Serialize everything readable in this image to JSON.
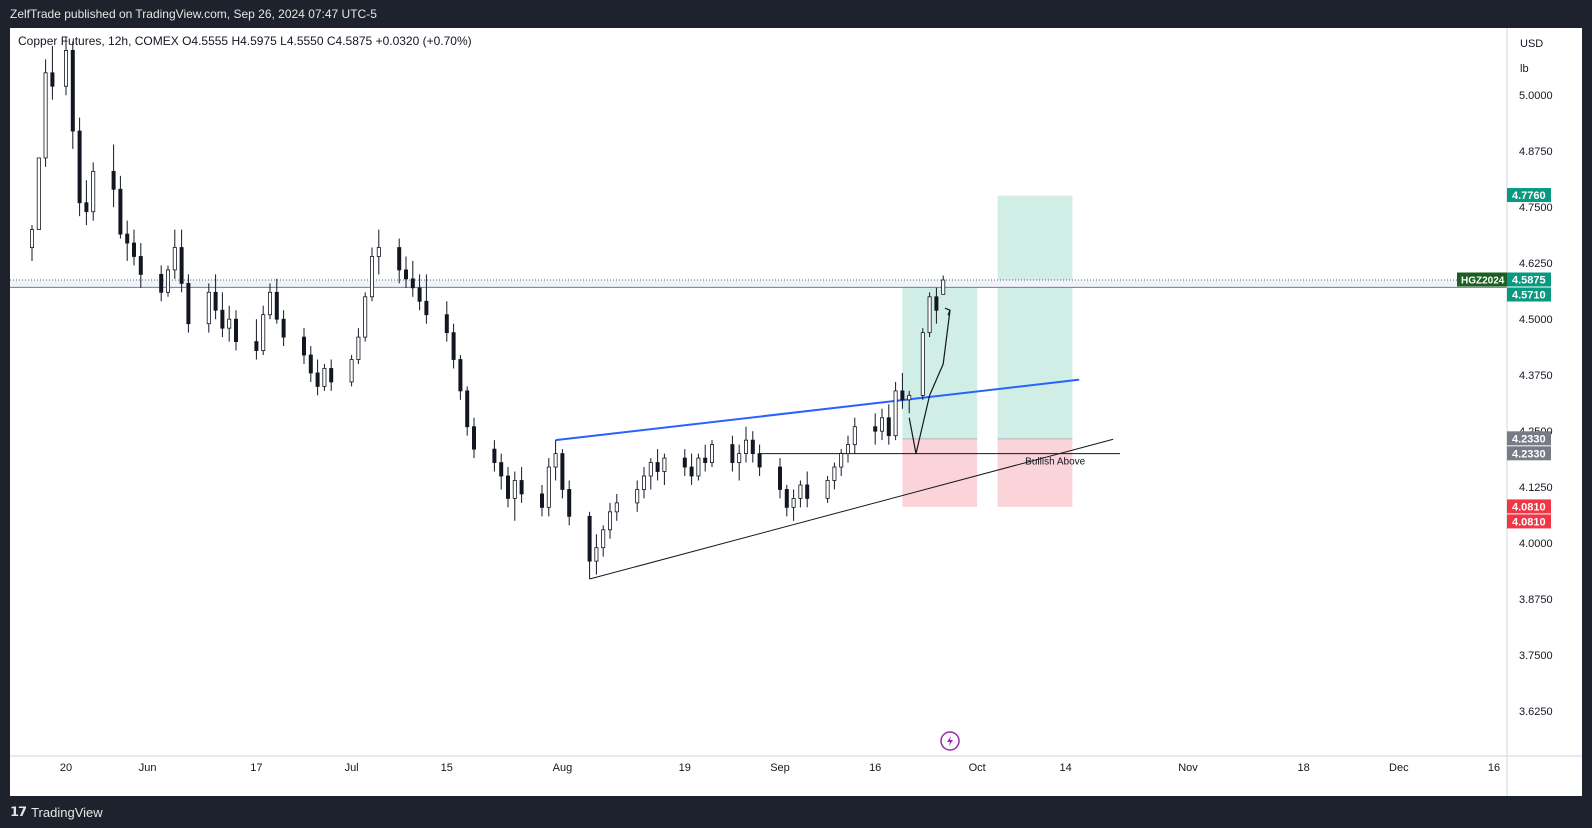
{
  "header": {
    "publisher_line": "ZelfTrade published on TradingView.com, Sep 26, 2024 07:47 UTC-5"
  },
  "footer": {
    "brand": "TradingView",
    "brand_mark": "𝟭𝟳"
  },
  "colors": {
    "bull": "#ffffff",
    "bear": "#131722",
    "wick": "#131722",
    "blue_line": "#2962ff",
    "target_zone": "#d1eee6",
    "stop_zone": "#fad4d9",
    "green_label": "#089981",
    "red_label": "#f23645",
    "grey_label": "#787b86",
    "symbol_label": "#1b5e20",
    "lightning": "#9c27b0"
  },
  "chart_data": {
    "type": "candlestick",
    "symbol_line": {
      "name": "Copper Futures, 12h, COMEX",
      "open": "O4.5555",
      "high": "H4.5975",
      "low": "L4.5550",
      "close": "C4.5875",
      "change": "+0.0320 (+0.70%)"
    },
    "currency": "USD",
    "unit": "lb",
    "y_range": [
      3.525,
      5.15
    ],
    "y_ticks": [
      "5.0000",
      "4.8750",
      "4.7500",
      "4.6250",
      "4.5000",
      "4.3750",
      "4.2500",
      "4.1250",
      "4.0000",
      "3.8750",
      "3.7500",
      "3.6250"
    ],
    "x_labels": [
      {
        "label": "20",
        "date": "2024-05-20"
      },
      {
        "label": "Jun",
        "date": "2024-06-01"
      },
      {
        "label": "17",
        "date": "2024-06-17"
      },
      {
        "label": "Jul",
        "date": "2024-07-01"
      },
      {
        "label": "15",
        "date": "2024-07-15"
      },
      {
        "label": "Aug",
        "date": "2024-08-01"
      },
      {
        "label": "19",
        "date": "2024-08-19"
      },
      {
        "label": "Sep",
        "date": "2024-09-02"
      },
      {
        "label": "16",
        "date": "2024-09-16"
      },
      {
        "label": "Oct",
        "date": "2024-10-01"
      },
      {
        "label": "14",
        "date": "2024-10-14"
      },
      {
        "label": "Nov",
        "date": "2024-11-01"
      },
      {
        "label": "18",
        "date": "2024-11-18"
      },
      {
        "label": "Dec",
        "date": "2024-12-02"
      },
      {
        "label": "16",
        "date": "2024-12-16"
      }
    ],
    "price_labels": [
      {
        "text": "4.7760",
        "price": 4.776,
        "color_key": "green_label"
      },
      {
        "text": "4.5875",
        "price": 4.5875,
        "color_key": "green_label",
        "symbol": "HGZ2024"
      },
      {
        "text": "4.5710",
        "price": 4.571,
        "color_key": "green_label"
      },
      {
        "text": "4.2330",
        "price": 4.233,
        "color_key": "grey_label"
      },
      {
        "text": "4.2330",
        "price": 4.233,
        "color_key": "grey_label"
      },
      {
        "text": "4.0810",
        "price": 4.081,
        "color_key": "red_label"
      },
      {
        "text": "4.0810",
        "price": 4.081,
        "color_key": "red_label"
      }
    ],
    "annotations": {
      "bullish_label": "Bullish Above",
      "bullish_level": 4.2,
      "blue_trendline": [
        {
          "date": "2024-07-31",
          "price": 4.23
        },
        {
          "date": "2024-10-16",
          "price": 4.365
        }
      ],
      "support_trendline": [
        {
          "date": "2024-08-05",
          "price": 3.92
        },
        {
          "date": "2024-10-21",
          "price": 4.232
        }
      ],
      "resistance_band": [
        4.571,
        4.5875
      ],
      "long_positions": [
        {
          "start": "2024-09-20",
          "end": "2024-10-01",
          "entry": 4.233,
          "target": 4.571,
          "stop": 4.081
        },
        {
          "start": "2024-10-04",
          "end": "2024-10-15",
          "entry": 4.233,
          "target": 4.776,
          "stop": 4.081
        }
      ],
      "projection_path": [
        {
          "date": "2024-09-21",
          "price": 4.28
        },
        {
          "date": "2024-09-22",
          "price": 4.2
        },
        {
          "date": "2024-09-24",
          "price": 4.33
        },
        {
          "date": "2024-09-26",
          "price": 4.4
        },
        {
          "date": "2024-09-27",
          "price": 4.52
        }
      ]
    },
    "candles": [
      {
        "d": "2024-05-15",
        "o": 4.66,
        "h": 4.71,
        "l": 4.63,
        "c": 4.7
      },
      {
        "d": "2024-05-16",
        "o": 4.7,
        "h": 4.86,
        "l": 4.7,
        "c": 4.86
      },
      {
        "d": "2024-05-17",
        "o": 4.86,
        "h": 5.08,
        "l": 4.84,
        "c": 5.05
      },
      {
        "d": "2024-05-18",
        "o": 5.05,
        "h": 5.11,
        "l": 4.99,
        "c": 5.02
      },
      {
        "d": "2024-05-20",
        "o": 5.02,
        "h": 5.13,
        "l": 5.0,
        "c": 5.1
      },
      {
        "d": "2024-05-21",
        "o": 5.1,
        "h": 5.12,
        "l": 4.88,
        "c": 4.92
      },
      {
        "d": "2024-05-22",
        "o": 4.92,
        "h": 4.95,
        "l": 4.73,
        "c": 4.76
      },
      {
        "d": "2024-05-23",
        "o": 4.76,
        "h": 4.81,
        "l": 4.71,
        "c": 4.74
      },
      {
        "d": "2024-05-24",
        "o": 4.74,
        "h": 4.85,
        "l": 4.72,
        "c": 4.83
      },
      {
        "d": "2024-05-27",
        "o": 4.83,
        "h": 4.89,
        "l": 4.75,
        "c": 4.79
      },
      {
        "d": "2024-05-28",
        "o": 4.79,
        "h": 4.82,
        "l": 4.68,
        "c": 4.69
      },
      {
        "d": "2024-05-29",
        "o": 4.69,
        "h": 4.72,
        "l": 4.63,
        "c": 4.67
      },
      {
        "d": "2024-05-30",
        "o": 4.67,
        "h": 4.7,
        "l": 4.62,
        "c": 4.64
      },
      {
        "d": "2024-05-31",
        "o": 4.64,
        "h": 4.67,
        "l": 4.57,
        "c": 4.6
      },
      {
        "d": "2024-06-03",
        "o": 4.6,
        "h": 4.62,
        "l": 4.54,
        "c": 4.56
      },
      {
        "d": "2024-06-04",
        "o": 4.56,
        "h": 4.62,
        "l": 4.55,
        "c": 4.61
      },
      {
        "d": "2024-06-05",
        "o": 4.61,
        "h": 4.7,
        "l": 4.59,
        "c": 4.66
      },
      {
        "d": "2024-06-06",
        "o": 4.66,
        "h": 4.7,
        "l": 4.56,
        "c": 4.58
      },
      {
        "d": "2024-06-07",
        "o": 4.58,
        "h": 4.6,
        "l": 4.47,
        "c": 4.49
      },
      {
        "d": "2024-06-10",
        "o": 4.49,
        "h": 4.58,
        "l": 4.47,
        "c": 4.56
      },
      {
        "d": "2024-06-11",
        "o": 4.56,
        "h": 4.6,
        "l": 4.5,
        "c": 4.52
      },
      {
        "d": "2024-06-12",
        "o": 4.52,
        "h": 4.56,
        "l": 4.46,
        "c": 4.48
      },
      {
        "d": "2024-06-13",
        "o": 4.48,
        "h": 4.53,
        "l": 4.45,
        "c": 4.5
      },
      {
        "d": "2024-06-14",
        "o": 4.5,
        "h": 4.52,
        "l": 4.43,
        "c": 4.45
      },
      {
        "d": "2024-06-17",
        "o": 4.45,
        "h": 4.5,
        "l": 4.41,
        "c": 4.43
      },
      {
        "d": "2024-06-18",
        "o": 4.43,
        "h": 4.53,
        "l": 4.42,
        "c": 4.51
      },
      {
        "d": "2024-06-19",
        "o": 4.51,
        "h": 4.58,
        "l": 4.5,
        "c": 4.56
      },
      {
        "d": "2024-06-20",
        "o": 4.56,
        "h": 4.59,
        "l": 4.49,
        "c": 4.5
      },
      {
        "d": "2024-06-21",
        "o": 4.5,
        "h": 4.52,
        "l": 4.44,
        "c": 4.46
      },
      {
        "d": "2024-06-24",
        "o": 4.46,
        "h": 4.48,
        "l": 4.4,
        "c": 4.42
      },
      {
        "d": "2024-06-25",
        "o": 4.42,
        "h": 4.44,
        "l": 4.36,
        "c": 4.38
      },
      {
        "d": "2024-06-26",
        "o": 4.38,
        "h": 4.41,
        "l": 4.33,
        "c": 4.35
      },
      {
        "d": "2024-06-27",
        "o": 4.35,
        "h": 4.4,
        "l": 4.34,
        "c": 4.39
      },
      {
        "d": "2024-06-28",
        "o": 4.39,
        "h": 4.41,
        "l": 4.34,
        "c": 4.36
      },
      {
        "d": "2024-07-01",
        "o": 4.36,
        "h": 4.42,
        "l": 4.35,
        "c": 4.41
      },
      {
        "d": "2024-07-02",
        "o": 4.41,
        "h": 4.48,
        "l": 4.4,
        "c": 4.46
      },
      {
        "d": "2024-07-03",
        "o": 4.46,
        "h": 4.56,
        "l": 4.45,
        "c": 4.55
      },
      {
        "d": "2024-07-04",
        "o": 4.55,
        "h": 4.66,
        "l": 4.54,
        "c": 4.64
      },
      {
        "d": "2024-07-05",
        "o": 4.64,
        "h": 4.7,
        "l": 4.6,
        "c": 4.66
      },
      {
        "d": "2024-07-08",
        "o": 4.66,
        "h": 4.68,
        "l": 4.58,
        "c": 4.61
      },
      {
        "d": "2024-07-09",
        "o": 4.61,
        "h": 4.64,
        "l": 4.57,
        "c": 4.59
      },
      {
        "d": "2024-07-10",
        "o": 4.59,
        "h": 4.63,
        "l": 4.55,
        "c": 4.57
      },
      {
        "d": "2024-07-11",
        "o": 4.57,
        "h": 4.6,
        "l": 4.52,
        "c": 4.54
      },
      {
        "d": "2024-07-12",
        "o": 4.54,
        "h": 4.6,
        "l": 4.49,
        "c": 4.51
      },
      {
        "d": "2024-07-15",
        "o": 4.51,
        "h": 4.54,
        "l": 4.45,
        "c": 4.47
      },
      {
        "d": "2024-07-16",
        "o": 4.47,
        "h": 4.49,
        "l": 4.39,
        "c": 4.41
      },
      {
        "d": "2024-07-17",
        "o": 4.41,
        "h": 4.42,
        "l": 4.32,
        "c": 4.34
      },
      {
        "d": "2024-07-18",
        "o": 4.34,
        "h": 4.35,
        "l": 4.24,
        "c": 4.26
      },
      {
        "d": "2024-07-19",
        "o": 4.26,
        "h": 4.28,
        "l": 4.19,
        "c": 4.21
      },
      {
        "d": "2024-07-22",
        "o": 4.21,
        "h": 4.23,
        "l": 4.16,
        "c": 4.18
      },
      {
        "d": "2024-07-23",
        "o": 4.18,
        "h": 4.2,
        "l": 4.12,
        "c": 4.15
      },
      {
        "d": "2024-07-24",
        "o": 4.15,
        "h": 4.17,
        "l": 4.08,
        "c": 4.1
      },
      {
        "d": "2024-07-25",
        "o": 4.1,
        "h": 4.16,
        "l": 4.05,
        "c": 4.14
      },
      {
        "d": "2024-07-26",
        "o": 4.14,
        "h": 4.17,
        "l": 4.09,
        "c": 4.11
      },
      {
        "d": "2024-07-29",
        "o": 4.11,
        "h": 4.13,
        "l": 4.06,
        "c": 4.08
      },
      {
        "d": "2024-07-30",
        "o": 4.08,
        "h": 4.19,
        "l": 4.06,
        "c": 4.17
      },
      {
        "d": "2024-07-31",
        "o": 4.17,
        "h": 4.23,
        "l": 4.14,
        "c": 4.2
      },
      {
        "d": "2024-08-01",
        "o": 4.2,
        "h": 4.21,
        "l": 4.1,
        "c": 4.12
      },
      {
        "d": "2024-08-02",
        "o": 4.12,
        "h": 4.14,
        "l": 4.04,
        "c": 4.06
      },
      {
        "d": "2024-08-05",
        "o": 4.06,
        "h": 4.07,
        "l": 3.92,
        "c": 3.96
      },
      {
        "d": "2024-08-06",
        "o": 3.96,
        "h": 4.02,
        "l": 3.93,
        "c": 3.99
      },
      {
        "d": "2024-08-07",
        "o": 3.99,
        "h": 4.04,
        "l": 3.97,
        "c": 4.03
      },
      {
        "d": "2024-08-08",
        "o": 4.03,
        "h": 4.09,
        "l": 4.01,
        "c": 4.07
      },
      {
        "d": "2024-08-09",
        "o": 4.07,
        "h": 4.11,
        "l": 4.05,
        "c": 4.09
      },
      {
        "d": "2024-08-12",
        "o": 4.09,
        "h": 4.14,
        "l": 4.07,
        "c": 4.12
      },
      {
        "d": "2024-08-13",
        "o": 4.12,
        "h": 4.17,
        "l": 4.1,
        "c": 4.15
      },
      {
        "d": "2024-08-14",
        "o": 4.15,
        "h": 4.19,
        "l": 4.12,
        "c": 4.18
      },
      {
        "d": "2024-08-15",
        "o": 4.18,
        "h": 4.21,
        "l": 4.14,
        "c": 4.16
      },
      {
        "d": "2024-08-16",
        "o": 4.16,
        "h": 4.2,
        "l": 4.13,
        "c": 4.19
      },
      {
        "d": "2024-08-19",
        "o": 4.19,
        "h": 4.21,
        "l": 4.15,
        "c": 4.17
      },
      {
        "d": "2024-08-20",
        "o": 4.17,
        "h": 4.2,
        "l": 4.13,
        "c": 4.15
      },
      {
        "d": "2024-08-21",
        "o": 4.15,
        "h": 4.2,
        "l": 4.14,
        "c": 4.19
      },
      {
        "d": "2024-08-22",
        "o": 4.19,
        "h": 4.22,
        "l": 4.16,
        "c": 4.18
      },
      {
        "d": "2024-08-23",
        "o": 4.18,
        "h": 4.23,
        "l": 4.17,
        "c": 4.22
      },
      {
        "d": "2024-08-26",
        "o": 4.22,
        "h": 4.24,
        "l": 4.16,
        "c": 4.18
      },
      {
        "d": "2024-08-27",
        "o": 4.18,
        "h": 4.22,
        "l": 4.14,
        "c": 4.2
      },
      {
        "d": "2024-08-28",
        "o": 4.2,
        "h": 4.26,
        "l": 4.18,
        "c": 4.23
      },
      {
        "d": "2024-08-29",
        "o": 4.23,
        "h": 4.25,
        "l": 4.18,
        "c": 4.2
      },
      {
        "d": "2024-08-30",
        "o": 4.2,
        "h": 4.22,
        "l": 4.15,
        "c": 4.17
      },
      {
        "d": "2024-09-02",
        "o": 4.17,
        "h": 4.19,
        "l": 4.1,
        "c": 4.12
      },
      {
        "d": "2024-09-03",
        "o": 4.12,
        "h": 4.13,
        "l": 4.06,
        "c": 4.08
      },
      {
        "d": "2024-09-04",
        "o": 4.08,
        "h": 4.12,
        "l": 4.05,
        "c": 4.1
      },
      {
        "d": "2024-09-05",
        "o": 4.1,
        "h": 4.14,
        "l": 4.08,
        "c": 4.13
      },
      {
        "d": "2024-09-06",
        "o": 4.13,
        "h": 4.16,
        "l": 4.08,
        "c": 4.1
      },
      {
        "d": "2024-09-09",
        "o": 4.1,
        "h": 4.15,
        "l": 4.09,
        "c": 4.14
      },
      {
        "d": "2024-09-10",
        "o": 4.14,
        "h": 4.18,
        "l": 4.12,
        "c": 4.17
      },
      {
        "d": "2024-09-11",
        "o": 4.17,
        "h": 4.21,
        "l": 4.15,
        "c": 4.2
      },
      {
        "d": "2024-09-12",
        "o": 4.2,
        "h": 4.24,
        "l": 4.18,
        "c": 4.22
      },
      {
        "d": "2024-09-13",
        "o": 4.22,
        "h": 4.28,
        "l": 4.2,
        "c": 4.26
      },
      {
        "d": "2024-09-16",
        "o": 4.26,
        "h": 4.29,
        "l": 4.22,
        "c": 4.25
      },
      {
        "d": "2024-09-17",
        "o": 4.25,
        "h": 4.3,
        "l": 4.23,
        "c": 4.28
      },
      {
        "d": "2024-09-18",
        "o": 4.28,
        "h": 4.31,
        "l": 4.22,
        "c": 4.24
      },
      {
        "d": "2024-09-19",
        "o": 4.24,
        "h": 4.36,
        "l": 4.23,
        "c": 4.34
      },
      {
        "d": "2024-09-20",
        "o": 4.34,
        "h": 4.38,
        "l": 4.3,
        "c": 4.32
      },
      {
        "d": "2024-09-21",
        "o": 4.32,
        "h": 4.34,
        "l": 4.29,
        "c": 4.33
      },
      {
        "d": "2024-09-23",
        "o": 4.33,
        "h": 4.48,
        "l": 4.32,
        "c": 4.47
      },
      {
        "d": "2024-09-24",
        "o": 4.47,
        "h": 4.56,
        "l": 4.46,
        "c": 4.55
      },
      {
        "d": "2024-09-25",
        "o": 4.55,
        "h": 4.57,
        "l": 4.49,
        "c": 4.52
      },
      {
        "d": "2024-09-26",
        "o": 4.5555,
        "h": 4.5975,
        "l": 4.555,
        "c": 4.5875
      }
    ]
  }
}
